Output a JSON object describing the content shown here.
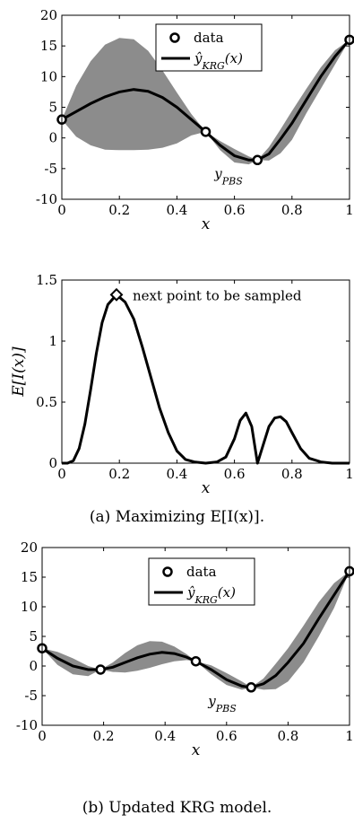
{
  "chart_data": [
    {
      "type": "line",
      "xlabel": "x",
      "xlim": [
        0,
        1
      ],
      "ylim": [
        -10,
        20
      ],
      "xticks": [
        "0",
        "0.2",
        "0.4",
        "0.6",
        "0.8",
        "1"
      ],
      "yticks": [
        "-10",
        "-5",
        "0",
        "5",
        "10",
        "15",
        "20"
      ],
      "legend": {
        "placement": "top-right",
        "entries": [
          "data",
          "ŷ_KRG(x)"
        ]
      },
      "data_points": {
        "x": [
          0,
          0.5,
          0.68,
          1
        ],
        "y": [
          3,
          1,
          -3.6,
          16
        ]
      },
      "mean": {
        "x": [
          0,
          0.05,
          0.1,
          0.15,
          0.2,
          0.25,
          0.3,
          0.35,
          0.4,
          0.45,
          0.5,
          0.55,
          0.6,
          0.65,
          0.68,
          0.72,
          0.76,
          0.8,
          0.85,
          0.9,
          0.95,
          1.0
        ],
        "y": [
          3,
          4.3,
          5.6,
          6.7,
          7.5,
          7.9,
          7.6,
          6.6,
          5.0,
          3.0,
          1.0,
          -1.2,
          -2.9,
          -3.6,
          -3.6,
          -2.6,
          -0.2,
          2.4,
          6.2,
          10.0,
          13.3,
          16.0
        ]
      },
      "band": {
        "x": [
          0,
          0.05,
          0.1,
          0.15,
          0.2,
          0.25,
          0.3,
          0.35,
          0.4,
          0.45,
          0.5,
          0.55,
          0.6,
          0.65,
          0.68,
          0.72,
          0.76,
          0.8,
          0.85,
          0.9,
          0.95,
          1.0
        ],
        "upper": [
          3,
          8.5,
          12.5,
          15.2,
          16.3,
          16.1,
          14.2,
          11.0,
          7.4,
          3.9,
          1.0,
          -0.5,
          -1.8,
          -3.0,
          -3.6,
          -1.5,
          1.4,
          4.4,
          8.0,
          11.5,
          14.3,
          16.0
        ],
        "lower": [
          3,
          0.2,
          -1.2,
          -1.9,
          -2.0,
          -2.0,
          -1.9,
          -1.6,
          -0.9,
          0.4,
          1.0,
          -2.0,
          -4.0,
          -4.3,
          -3.6,
          -3.7,
          -2.5,
          -0.3,
          4.0,
          8.0,
          12.0,
          16.0
        ]
      },
      "annotation": {
        "text": "y_PBS",
        "x": 0.68,
        "y": -3.6
      }
    },
    {
      "type": "line",
      "xlabel": "x",
      "ylabel": "E[I(x)]",
      "xlim": [
        0,
        1
      ],
      "ylim": [
        0,
        1.5
      ],
      "xticks": [
        "0",
        "0.2",
        "0.4",
        "0.6",
        "0.8",
        "1"
      ],
      "yticks": [
        "0",
        "0.5",
        "1",
        "1.5"
      ],
      "curve": {
        "x": [
          0,
          0.02,
          0.04,
          0.06,
          0.08,
          0.1,
          0.12,
          0.14,
          0.16,
          0.19,
          0.22,
          0.25,
          0.28,
          0.31,
          0.34,
          0.37,
          0.4,
          0.43,
          0.46,
          0.5,
          0.54,
          0.57,
          0.6,
          0.62,
          0.64,
          0.66,
          0.68,
          0.7,
          0.72,
          0.74,
          0.76,
          0.78,
          0.8,
          0.83,
          0.86,
          0.9,
          0.94,
          1.0
        ],
        "y": [
          0,
          0,
          0.02,
          0.12,
          0.32,
          0.6,
          0.9,
          1.15,
          1.3,
          1.38,
          1.32,
          1.18,
          0.95,
          0.7,
          0.45,
          0.25,
          0.1,
          0.03,
          0.01,
          0,
          0.01,
          0.05,
          0.2,
          0.35,
          0.41,
          0.3,
          0,
          0.15,
          0.3,
          0.37,
          0.38,
          0.34,
          0.25,
          0.12,
          0.04,
          0.01,
          0,
          0
        ]
      },
      "marker": {
        "x": 0.19,
        "y": 1.38
      },
      "annotation": {
        "text": "next point to be sampled"
      }
    },
    {
      "type": "line",
      "xlabel": "x",
      "xlim": [
        0,
        1
      ],
      "ylim": [
        -10,
        20
      ],
      "xticks": [
        "0",
        "0.2",
        "0.4",
        "0.6",
        "0.8",
        "1"
      ],
      "yticks": [
        "-10",
        "-5",
        "0",
        "5",
        "10",
        "15",
        "20"
      ],
      "legend": {
        "placement": "top-center",
        "entries": [
          "data",
          "ŷ_KRG(x)"
        ]
      },
      "data_points": {
        "x": [
          0,
          0.19,
          0.5,
          0.68,
          1
        ],
        "y": [
          3,
          -0.6,
          0.8,
          -3.6,
          16
        ]
      },
      "mean": {
        "x": [
          0,
          0.05,
          0.1,
          0.15,
          0.19,
          0.23,
          0.27,
          0.31,
          0.35,
          0.39,
          0.43,
          0.47,
          0.5,
          0.55,
          0.6,
          0.65,
          0.68,
          0.72,
          0.76,
          0.8,
          0.85,
          0.9,
          0.95,
          1.0
        ],
        "y": [
          3,
          1.3,
          0.0,
          -0.6,
          -0.6,
          -0.2,
          0.6,
          1.4,
          2.0,
          2.3,
          2.1,
          1.5,
          0.8,
          -0.6,
          -2.3,
          -3.4,
          -3.6,
          -3.0,
          -1.6,
          0.6,
          3.8,
          8.0,
          12.0,
          16.0
        ]
      },
      "band": {
        "x": [
          0,
          0.05,
          0.1,
          0.15,
          0.19,
          0.23,
          0.27,
          0.31,
          0.35,
          0.39,
          0.43,
          0.47,
          0.5,
          0.55,
          0.6,
          0.65,
          0.68,
          0.72,
          0.76,
          0.8,
          0.85,
          0.9,
          0.95,
          1.0
        ],
        "upper": [
          3,
          2.4,
          1.3,
          0.0,
          -0.6,
          0.6,
          2.2,
          3.5,
          4.2,
          4.1,
          3.3,
          2.0,
          0.8,
          0.1,
          -1.2,
          -2.6,
          -3.6,
          -2.1,
          0.4,
          3.0,
          6.8,
          10.8,
          14.0,
          16.0
        ],
        "lower": [
          3,
          0.2,
          -1.4,
          -1.7,
          -0.6,
          -1.0,
          -1.1,
          -0.8,
          -0.3,
          0.3,
          0.8,
          1.0,
          0.8,
          -1.4,
          -3.2,
          -4.0,
          -3.6,
          -4.0,
          -3.9,
          -2.6,
          0.6,
          5.0,
          9.8,
          16.0
        ]
      },
      "annotation": {
        "text": "y_PBS",
        "x": 0.68,
        "y": -3.6
      }
    }
  ],
  "captions": {
    "a": "(a) Maximizing E[I(x)].",
    "b": "(b) Updated KRG model."
  }
}
